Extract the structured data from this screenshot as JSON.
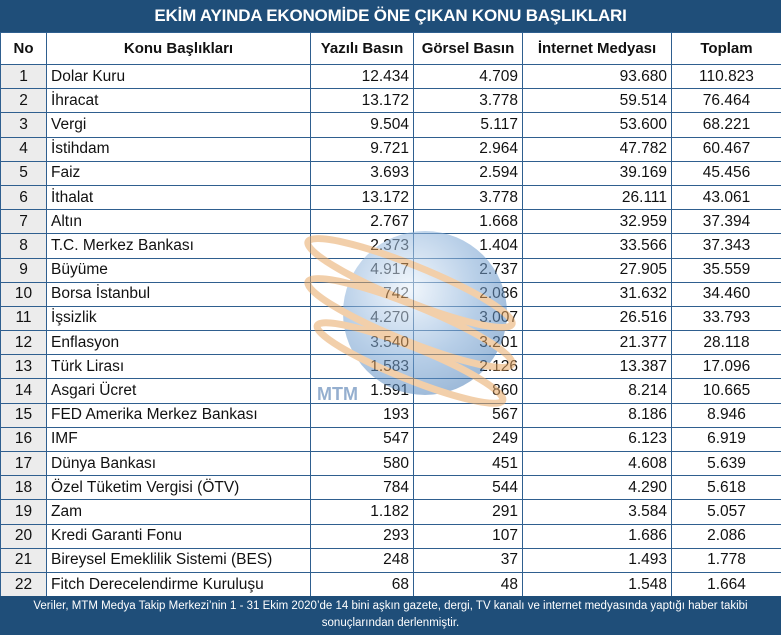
{
  "title": "EKİM AYINDA EKONOMİDE ÖNE ÇIKAN KONU BAŞLIKLARI",
  "columns": [
    "No",
    "Konu Başlıkları",
    "Yazılı Basın",
    "Görsel Basın",
    "İnternet Medyası",
    "Toplam"
  ],
  "rows": [
    [
      "1",
      "Dolar Kuru",
      "12.434",
      "4.709",
      "93.680",
      "110.823"
    ],
    [
      "2",
      "İhracat",
      "13.172",
      "3.778",
      "59.514",
      "76.464"
    ],
    [
      "3",
      "Vergi",
      "9.504",
      "5.117",
      "53.600",
      "68.221"
    ],
    [
      "4",
      "İstihdam",
      "9.721",
      "2.964",
      "47.782",
      "60.467"
    ],
    [
      "5",
      "Faiz",
      "3.693",
      "2.594",
      "39.169",
      "45.456"
    ],
    [
      "6",
      "İthalat",
      "13.172",
      "3.778",
      "26.111",
      "43.061"
    ],
    [
      "7",
      "Altın",
      "2.767",
      "1.668",
      "32.959",
      "37.394"
    ],
    [
      "8",
      "T.C. Merkez Bankası",
      "2.373",
      "1.404",
      "33.566",
      "37.343"
    ],
    [
      "9",
      "Büyüme",
      "4.917",
      "2.737",
      "27.905",
      "35.559"
    ],
    [
      "10",
      "Borsa İstanbul",
      "742",
      "2.086",
      "31.632",
      "34.460"
    ],
    [
      "11",
      "İşsizlik",
      "4.270",
      "3.007",
      "26.516",
      "33.793"
    ],
    [
      "12",
      "Enflasyon",
      "3.540",
      "3.201",
      "21.377",
      "28.118"
    ],
    [
      "13",
      "Türk Lirası",
      "1.583",
      "2.126",
      "13.387",
      "17.096"
    ],
    [
      "14",
      "Asgari Ücret",
      "1.591",
      "860",
      "8.214",
      "10.665"
    ],
    [
      "15",
      "FED Amerika Merkez Bankası",
      "193",
      "567",
      "8.186",
      "8.946"
    ],
    [
      "16",
      "IMF",
      "547",
      "249",
      "6.123",
      "6.919"
    ],
    [
      "17",
      "Dünya Bankası",
      "580",
      "451",
      "4.608",
      "5.639"
    ],
    [
      "18",
      "Özel Tüketim Vergisi (ÖTV)",
      "784",
      "544",
      "4.290",
      "5.618"
    ],
    [
      "19",
      "Zam",
      "1.182",
      "291",
      "3.584",
      "5.057"
    ],
    [
      "20",
      "Kredi Garanti Fonu",
      "293",
      "107",
      "1.686",
      "2.086"
    ],
    [
      "21",
      "Bireysel Emeklilik Sistemi (BES)",
      "248",
      "37",
      "1.493",
      "1.778"
    ],
    [
      "22",
      "Fitch Derecelendirme Kuruluşu",
      "68",
      "48",
      "1.548",
      "1.664"
    ]
  ],
  "footer": "Veriler, MTM Medya Takip Merkezi’nin 1 - 31 Ekim 2020’de 14 bini aşkın gazete, dergi, TV kanalı ve internet medyasında yaptığı haber takibi sonuçlarından derlenmiştir.",
  "watermark_text": "MTM",
  "colors": {
    "header_bg": "#1f4e79",
    "no_col_bg": "#ececec",
    "border": "#2f5f8f"
  }
}
